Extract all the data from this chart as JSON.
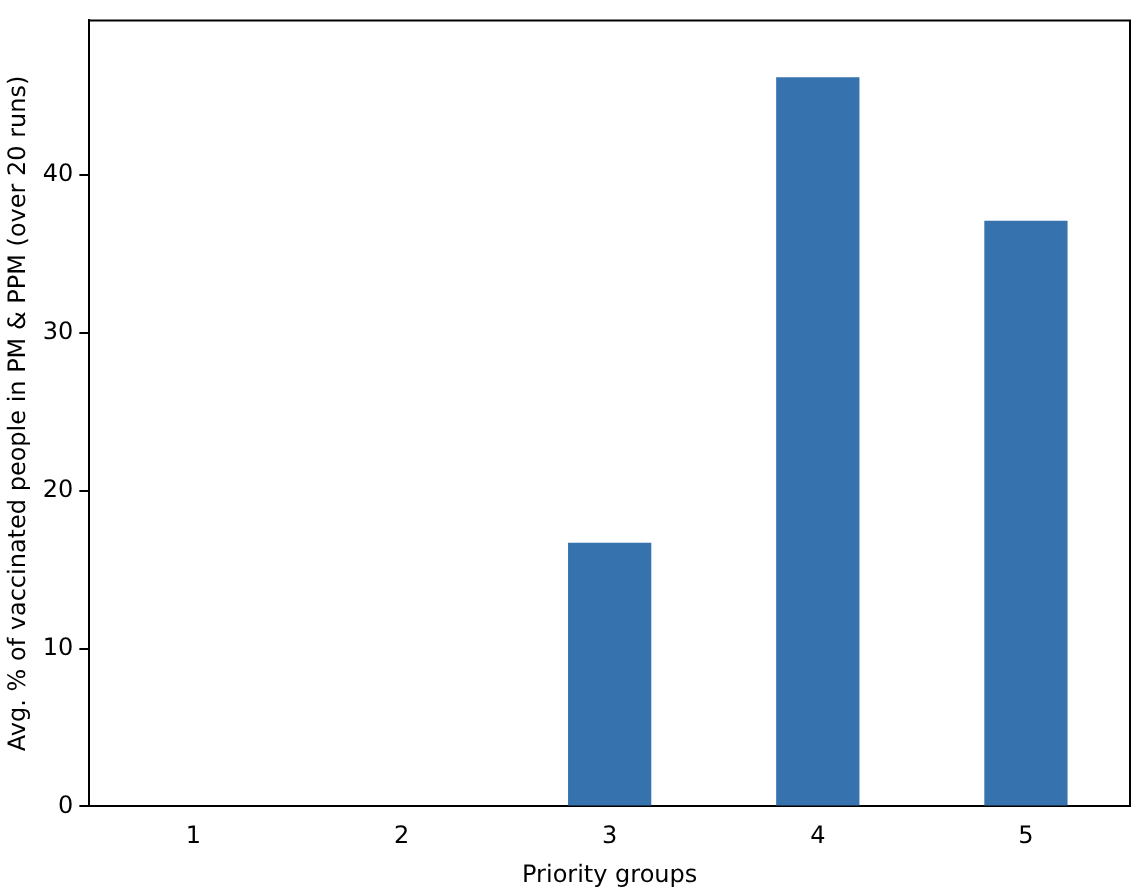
{
  "chart_data": {
    "type": "bar",
    "xlabel": "Priority groups",
    "ylabel": "Avg. % of vaccinated people in PM & PPM (over 20 runs)",
    "categories": [
      "1",
      "2",
      "3",
      "4",
      "5"
    ],
    "values": [
      0,
      0,
      16.7,
      46.2,
      37.1
    ],
    "color": "#3572ae",
    "ylim": [
      0,
      49.8
    ],
    "yticks": [
      0,
      10,
      20,
      30,
      40
    ],
    "grid": false,
    "legend": false
  }
}
